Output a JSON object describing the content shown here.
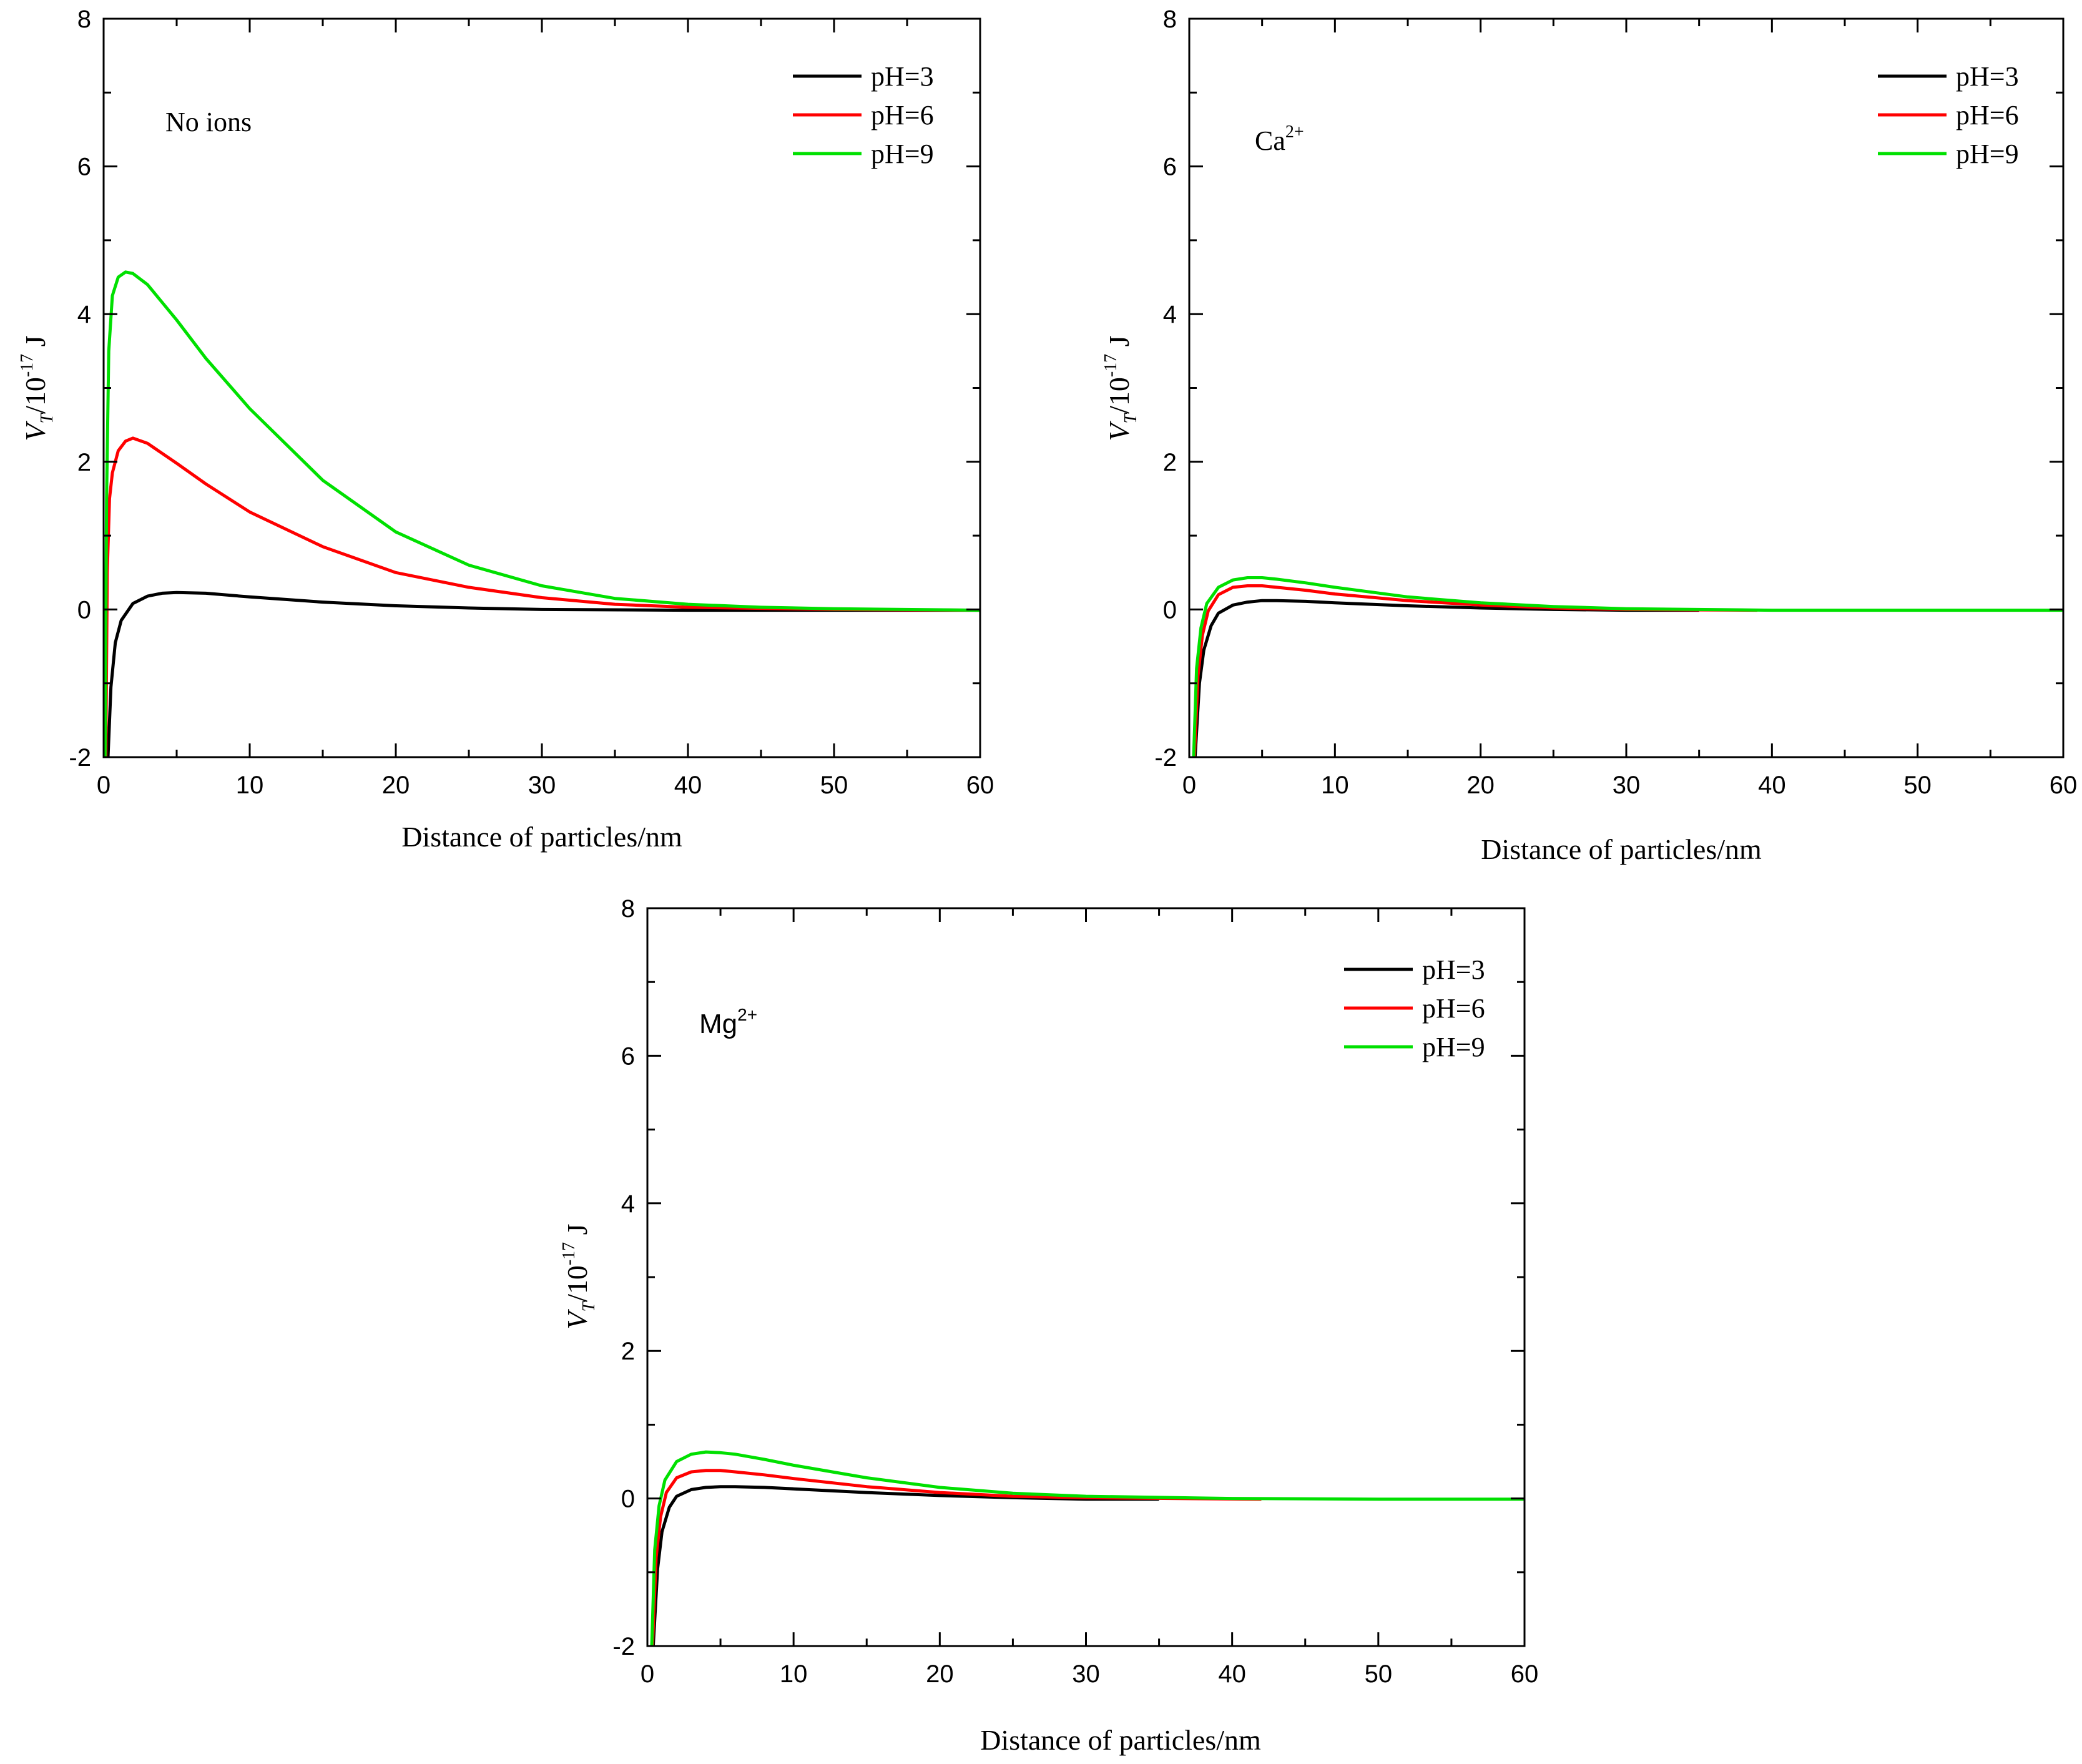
{
  "figure_title": "",
  "colors": {
    "pH3": "#000000",
    "pH6": "#ff0000",
    "pH9": "#00e000",
    "axis": "#000000"
  },
  "chart_data": [
    {
      "type": "line",
      "panel": "top-left",
      "annotation": {
        "main": "No ions",
        "sup": ""
      },
      "xlabel": "Distance of particles/nm",
      "ylabel": {
        "main": "V",
        "sub": "T",
        "unit": "/10",
        "exp": "-17",
        "tail": " J"
      },
      "xlim": [
        0,
        60
      ],
      "ylim": [
        -2,
        8
      ],
      "xticks": [
        "0",
        "10",
        "20",
        "30",
        "40",
        "50",
        "60"
      ],
      "yticks": [
        "-2",
        "0",
        "2",
        "4",
        "6",
        "8"
      ],
      "legend_position": "top-right",
      "series": [
        {
          "name": "pH=3",
          "x": [
            0.3,
            0.5,
            0.8,
            1.2,
            2,
            3,
            4,
            5,
            7,
            10,
            15,
            20,
            25,
            30,
            40,
            50,
            60
          ],
          "values": [
            -2,
            -1.05,
            -0.45,
            -0.15,
            0.08,
            0.18,
            0.22,
            0.23,
            0.22,
            0.17,
            0.1,
            0.05,
            0.02,
            0.0,
            -0.01,
            -0.01,
            -0.01
          ]
        },
        {
          "name": "pH=6",
          "x": [
            0.15,
            0.25,
            0.4,
            0.6,
            1,
            1.5,
            2,
            3,
            5,
            7,
            10,
            15,
            20,
            25,
            30,
            35,
            40,
            50,
            60
          ],
          "values": [
            -2,
            0.5,
            1.5,
            1.85,
            2.15,
            2.28,
            2.32,
            2.25,
            1.98,
            1.7,
            1.32,
            0.85,
            0.5,
            0.3,
            0.16,
            0.07,
            0.03,
            0.0,
            -0.01
          ]
        },
        {
          "name": "pH=9",
          "x": [
            0.1,
            0.2,
            0.35,
            0.6,
            1,
            1.5,
            2,
            3,
            5,
            7,
            10,
            15,
            20,
            25,
            30,
            35,
            40,
            45,
            50,
            60
          ],
          "values": [
            -2,
            1.5,
            3.5,
            4.25,
            4.5,
            4.57,
            4.55,
            4.4,
            3.92,
            3.4,
            2.72,
            1.75,
            1.05,
            0.6,
            0.32,
            0.15,
            0.07,
            0.03,
            0.01,
            -0.01
          ]
        }
      ]
    },
    {
      "type": "line",
      "panel": "top-right",
      "annotation": {
        "main": "Ca",
        "sup": "2+"
      },
      "xlabel": "Distance of particles/nm",
      "ylabel": {
        "main": "V",
        "sub": "T",
        "unit": "/10",
        "exp": "-17",
        "tail": " J"
      },
      "xlim": [
        0,
        60
      ],
      "ylim": [
        -2,
        8
      ],
      "xticks": [
        "0",
        "10",
        "20",
        "30",
        "40",
        "50",
        "60"
      ],
      "yticks": [
        "-2",
        "0",
        "2",
        "4",
        "6",
        "8"
      ],
      "legend_position": "top-right",
      "series": [
        {
          "name": "pH=3",
          "x": [
            0.4,
            0.7,
            1,
            1.5,
            2,
            3,
            4,
            5,
            6,
            8,
            10,
            15,
            20,
            25,
            30,
            35
          ],
          "values": [
            -2,
            -1.0,
            -0.55,
            -0.22,
            -0.05,
            0.06,
            0.1,
            0.12,
            0.12,
            0.11,
            0.09,
            0.05,
            0.02,
            0.0,
            -0.01,
            -0.01
          ]
        },
        {
          "name": "pH=6",
          "x": [
            0.35,
            0.6,
            0.9,
            1.3,
            2,
            3,
            4,
            5,
            6,
            8,
            10,
            15,
            20,
            25,
            30,
            39
          ],
          "values": [
            -2,
            -0.9,
            -0.35,
            -0.02,
            0.2,
            0.3,
            0.32,
            0.32,
            0.3,
            0.26,
            0.21,
            0.12,
            0.06,
            0.02,
            0.0,
            -0.01
          ]
        },
        {
          "name": "pH=9",
          "x": [
            0.3,
            0.5,
            0.8,
            1.2,
            2,
            3,
            4,
            5,
            6,
            8,
            10,
            15,
            20,
            25,
            30,
            40,
            50,
            60
          ],
          "values": [
            -2,
            -0.8,
            -0.25,
            0.08,
            0.3,
            0.4,
            0.43,
            0.43,
            0.41,
            0.36,
            0.3,
            0.17,
            0.09,
            0.04,
            0.01,
            -0.01,
            -0.01,
            -0.01
          ]
        }
      ]
    },
    {
      "type": "line",
      "panel": "bottom-center",
      "annotation": {
        "main": "Mg",
        "sup": "2+"
      },
      "xlabel": "Distance of particles/nm",
      "ylabel": {
        "main": "V",
        "sub": "T",
        "unit": "/10",
        "exp": "-17",
        "tail": " J"
      },
      "xlim": [
        0,
        60
      ],
      "ylim": [
        -2,
        8
      ],
      "xticks": [
        "0",
        "10",
        "20",
        "30",
        "40",
        "50",
        "60"
      ],
      "yticks": [
        "-2",
        "0",
        "2",
        "4",
        "6",
        "8"
      ],
      "legend_position": "top-right",
      "series": [
        {
          "name": "pH=3",
          "x": [
            0.4,
            0.7,
            1,
            1.5,
            2,
            3,
            4,
            5,
            6,
            8,
            10,
            15,
            20,
            25,
            30,
            35
          ],
          "values": [
            -2,
            -0.95,
            -0.45,
            -0.12,
            0.03,
            0.12,
            0.15,
            0.16,
            0.16,
            0.15,
            0.13,
            0.08,
            0.04,
            0.01,
            -0.01,
            -0.01
          ]
        },
        {
          "name": "pH=6",
          "x": [
            0.35,
            0.6,
            0.9,
            1.3,
            2,
            3,
            4,
            5,
            6,
            8,
            10,
            15,
            20,
            25,
            30,
            42
          ],
          "values": [
            -2,
            -0.8,
            -0.25,
            0.08,
            0.28,
            0.36,
            0.38,
            0.38,
            0.36,
            0.32,
            0.27,
            0.16,
            0.08,
            0.03,
            0.01,
            -0.01
          ]
        },
        {
          "name": "pH=9",
          "x": [
            0.3,
            0.5,
            0.8,
            1.2,
            2,
            3,
            4,
            5,
            6,
            8,
            10,
            15,
            20,
            25,
            30,
            40,
            50,
            60
          ],
          "values": [
            -2,
            -0.7,
            -0.1,
            0.25,
            0.5,
            0.6,
            0.63,
            0.62,
            0.6,
            0.53,
            0.45,
            0.28,
            0.15,
            0.07,
            0.03,
            0.0,
            -0.01,
            -0.01
          ]
        }
      ]
    }
  ]
}
